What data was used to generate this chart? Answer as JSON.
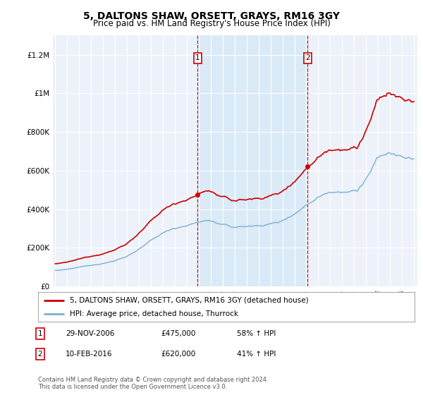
{
  "title": "5, DALTONS SHAW, ORSETT, GRAYS, RM16 3GY",
  "subtitle": "Price paid vs. HM Land Registry's House Price Index (HPI)",
  "title_fontsize": 10,
  "subtitle_fontsize": 8.5,
  "ylabel_ticks": [
    "£0",
    "£200K",
    "£400K",
    "£600K",
    "£800K",
    "£1M",
    "£1.2M"
  ],
  "ytick_values": [
    0,
    200000,
    400000,
    600000,
    800000,
    1000000,
    1200000
  ],
  "ylim": [
    0,
    1300000
  ],
  "sale1_date_label": "29-NOV-2006",
  "sale1_price": 475000,
  "sale1_hpi_change": "58% ↑ HPI",
  "sale2_date_label": "10-FEB-2016",
  "sale2_price": 620000,
  "sale2_hpi_change": "41% ↑ HPI",
  "legend_property": "5, DALTONS SHAW, ORSETT, GRAYS, RM16 3GY (detached house)",
  "legend_hpi": "HPI: Average price, detached house, Thurrock",
  "footnote": "Contains HM Land Registry data © Crown copyright and database right 2024.\nThis data is licensed under the Open Government Licence v3.0.",
  "sale1_x": 2006.917,
  "sale2_x": 2016.115,
  "property_color": "#cc0000",
  "hpi_color": "#7aafd4",
  "shade_color": "#dbeaf7",
  "vline_color": "#cc0000",
  "background_color": "#edf2fa"
}
